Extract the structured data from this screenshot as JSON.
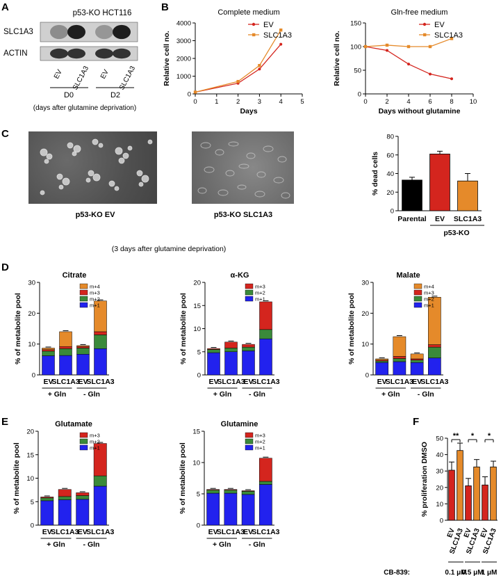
{
  "panels": {
    "a": "A",
    "b": "B",
    "c": "C",
    "d": "D",
    "e": "E",
    "f": "F"
  },
  "western_blot": {
    "cell_line": "p53-KO HCT116",
    "proteins": [
      "SLC1A3",
      "ACTIN"
    ],
    "lanes": [
      "EV",
      "SLC1A3",
      "EV",
      "SLC1A3"
    ],
    "timepoints": [
      "D0",
      "D2"
    ],
    "note": "(days after glutamine deprivation)",
    "band_intensity": {
      "SLC1A3": [
        0.4,
        0.95,
        0.35,
        0.95
      ],
      "ACTIN": [
        0.85,
        0.85,
        0.85,
        0.85
      ]
    }
  },
  "images": {
    "left_caption": "p53-KO EV",
    "right_caption": "p53-KO SLC1A3",
    "note": "(3 days after glutamine deprivation)"
  },
  "colors": {
    "ev": "#d4251e",
    "slc1a3": "#e58a2a",
    "parental": "#000000",
    "m1": "#2222ee",
    "m2": "#3a8a3a",
    "m3": "#d4251e",
    "m4": "#e58a2a"
  },
  "chart_data": [
    {
      "id": "complete",
      "type": "line",
      "title": "Complete medium",
      "xlabel": "Days",
      "ylabel": "Relative cell no.",
      "xlim": [
        0,
        5
      ],
      "ylim": [
        0,
        4000
      ],
      "xticks": [
        "0",
        "1",
        "2",
        "3",
        "4",
        "5"
      ],
      "yticks": [
        "0",
        "1000",
        "2000",
        "3000",
        "4000"
      ],
      "x": [
        0,
        2,
        3,
        4
      ],
      "series": [
        {
          "name": "EV",
          "values": [
            100,
            600,
            1400,
            2800
          ]
        },
        {
          "name": "SLC1A3",
          "values": [
            100,
            700,
            1600,
            3600
          ]
        }
      ],
      "legend": "top-right"
    },
    {
      "id": "glnfree",
      "type": "line",
      "title": "Gln-free medium",
      "xlabel": "Days without glutamine",
      "ylabel": "Relative cell no.",
      "xlim": [
        0,
        10
      ],
      "ylim": [
        0,
        150
      ],
      "xticks": [
        "0",
        "2",
        "4",
        "6",
        "8",
        "10"
      ],
      "yticks": [
        "0",
        "50",
        "100",
        "150"
      ],
      "x": [
        0,
        2,
        4,
        6,
        8
      ],
      "series": [
        {
          "name": "EV",
          "values": [
            100,
            92,
            63,
            42,
            32
          ]
        },
        {
          "name": "SLC1A3",
          "values": [
            100,
            103,
            100,
            100,
            117
          ]
        }
      ],
      "legend": "top-right"
    },
    {
      "id": "dead",
      "type": "bar",
      "ylabel": "% dead cells",
      "ylim": [
        0,
        80
      ],
      "yticks": [
        "0",
        "20",
        "40",
        "60",
        "80"
      ],
      "categories": [
        "Parental",
        "EV",
        "SLC1A3"
      ],
      "values": [
        33,
        61,
        32
      ],
      "errors": [
        3,
        3,
        8
      ],
      "group_label": "p53-KO"
    },
    {
      "id": "citrate",
      "type": "bar",
      "title": "Citrate",
      "ylabel": "% of metabolite pool",
      "ylim": [
        0,
        30
      ],
      "yticks": [
        "0",
        "10",
        "20",
        "30"
      ],
      "categories": [
        "EV",
        "SLC1A3",
        "EV",
        "SLC1A3"
      ],
      "groups": [
        "+ Gln",
        "- Gln"
      ],
      "series": [
        {
          "name": "m+1",
          "values": [
            6.2,
            6.3,
            6.7,
            8.5
          ]
        },
        {
          "name": "m+2",
          "values": [
            1.5,
            2.2,
            2.0,
            4.5
          ]
        },
        {
          "name": "m+3",
          "values": [
            0.5,
            0.7,
            0.5,
            1.0
          ]
        },
        {
          "name": "m+4",
          "values": [
            0.5,
            4.8,
            0.3,
            10.0
          ]
        }
      ]
    },
    {
      "id": "akg",
      "type": "bar",
      "title": "α-KG",
      "ylabel": "% of metabolite pool",
      "ylim": [
        0,
        20
      ],
      "yticks": [
        "0",
        "5",
        "10",
        "15",
        "20"
      ],
      "categories": [
        "EV",
        "SLC1A3",
        "EV",
        "SLC1A3"
      ],
      "groups": [
        "+ Gln",
        "- Gln"
      ],
      "series": [
        {
          "name": "m+1",
          "values": [
            4.8,
            5.0,
            5.2,
            7.8
          ]
        },
        {
          "name": "m+2",
          "values": [
            0.7,
            0.8,
            0.8,
            2.0
          ]
        },
        {
          "name": "m+3",
          "values": [
            0.2,
            1.3,
            0.6,
            6.0
          ]
        }
      ]
    },
    {
      "id": "malate",
      "type": "bar",
      "title": "Malate",
      "ylabel": "% of metabolite pool",
      "ylim": [
        0,
        30
      ],
      "yticks": [
        "0",
        "10",
        "20",
        "30"
      ],
      "categories": [
        "EV",
        "SLC1A3",
        "EV",
        "SLC1A3"
      ],
      "groups": [
        "+ Gln",
        "- Gln"
      ],
      "series": [
        {
          "name": "m+1",
          "values": [
            4.0,
            4.3,
            4.0,
            5.5
          ]
        },
        {
          "name": "m+2",
          "values": [
            0.5,
            1.0,
            0.8,
            3.5
          ]
        },
        {
          "name": "m+3",
          "values": [
            0.3,
            0.7,
            0.4,
            0.8
          ]
        },
        {
          "name": "m+4",
          "values": [
            0.4,
            6.4,
            1.6,
            15.4
          ]
        }
      ]
    },
    {
      "id": "glutamate",
      "type": "bar",
      "title": "Glutamate",
      "ylabel": "% of metabolite pool",
      "ylim": [
        0,
        20
      ],
      "yticks": [
        "0",
        "5",
        "10",
        "15",
        "20"
      ],
      "categories": [
        "EV",
        "SLC1A3",
        "EV",
        "SLC1A3"
      ],
      "groups": [
        "+ Gln",
        "- Gln"
      ],
      "series": [
        {
          "name": "m+1",
          "values": [
            5.2,
            5.4,
            5.5,
            8.3
          ]
        },
        {
          "name": "m+2",
          "values": [
            0.6,
            0.7,
            0.8,
            2.2
          ]
        },
        {
          "name": "m+3",
          "values": [
            0.2,
            1.5,
            0.6,
            6.9
          ]
        }
      ]
    },
    {
      "id": "glutamine",
      "type": "bar",
      "title": "Glutamine",
      "ylabel": "% of metabolite pool",
      "ylim": [
        0,
        15
      ],
      "yticks": [
        "0",
        "5",
        "10",
        "15"
      ],
      "categories": [
        "EV",
        "SLC1A3",
        "EV",
        "SLC1A3"
      ],
      "groups": [
        "+ Gln",
        "- Gln"
      ],
      "series": [
        {
          "name": "m+1",
          "values": [
            5.1,
            5.1,
            4.9,
            6.5
          ]
        },
        {
          "name": "m+2",
          "values": [
            0.5,
            0.5,
            0.5,
            0.5
          ]
        },
        {
          "name": "m+3",
          "values": [
            0.1,
            0.1,
            0.1,
            3.7
          ]
        }
      ]
    },
    {
      "id": "prolif",
      "type": "bar",
      "ylabel": "% proliferation DMSO",
      "ylim": [
        0,
        50
      ],
      "yticks": [
        "0",
        "10",
        "20",
        "30",
        "40",
        "50"
      ],
      "categories": [
        "EV",
        "SLC1A3",
        "EV",
        "SLC1A3",
        "EV",
        "SLC1A3"
      ],
      "values": [
        30.5,
        42.5,
        21,
        32.5,
        21.5,
        32.5
      ],
      "errors": [
        5,
        4.5,
        4.5,
        4.5,
        5,
        3.5
      ],
      "significance": [
        "**",
        "*",
        "*"
      ],
      "drug": "CB-839:",
      "doses": [
        "0.1 μM",
        "0.5 μM",
        "1 μM"
      ]
    }
  ]
}
